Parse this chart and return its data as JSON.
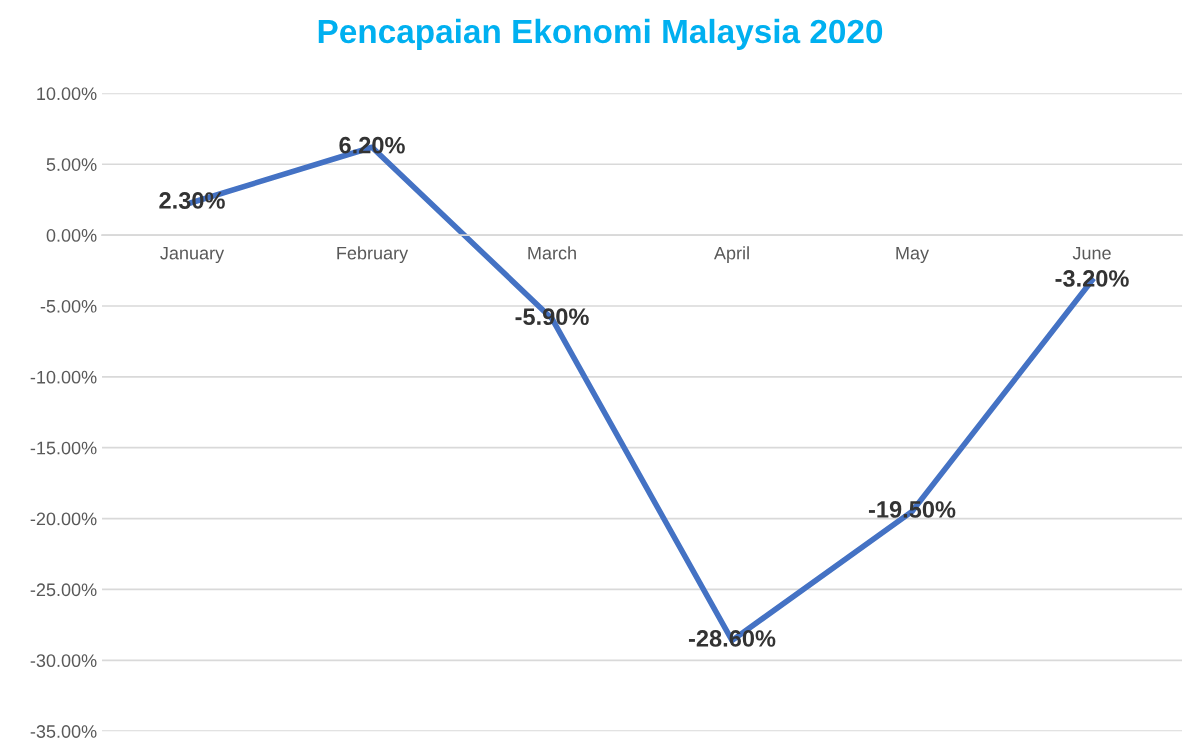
{
  "chart_data": {
    "type": "line",
    "title": "Pencapaian Ekonomi Malaysia 2020",
    "categories": [
      "January",
      "February",
      "March",
      "April",
      "May",
      "June"
    ],
    "series": [
      {
        "color": "#4472c4",
        "values": [
          2.3,
          6.2,
          -5.9,
          -28.6,
          -19.5,
          -3.2
        ],
        "value_labels": [
          "2.30%",
          "6.20%",
          "-5.90%",
          "-28.60%",
          "-19.50%",
          "-3.20%"
        ]
      }
    ],
    "ylim": [
      -35,
      10
    ],
    "yticks": [
      {
        "value": 10,
        "label": "10.00%"
      },
      {
        "value": 5,
        "label": "5.00%"
      },
      {
        "value": 0,
        "label": "0.00%"
      },
      {
        "value": -5,
        "label": "-5.00%"
      },
      {
        "value": -10,
        "label": "-10.00%"
      },
      {
        "value": -15,
        "label": "-15.00%"
      },
      {
        "value": -20,
        "label": "-20.00%"
      },
      {
        "value": -25,
        "label": "-25.00%"
      },
      {
        "value": -30,
        "label": "-30.00%"
      },
      {
        "value": -35,
        "label": "-35.00%"
      }
    ],
    "grid": "y",
    "marker": "none",
    "line_style": "solid"
  }
}
